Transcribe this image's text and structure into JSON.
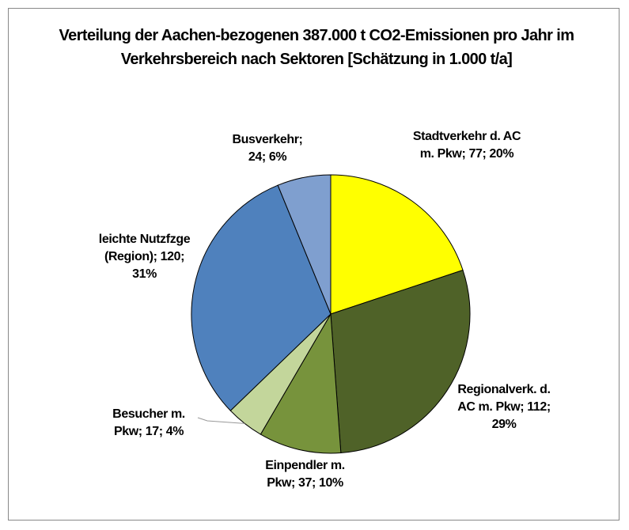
{
  "chart_data": {
    "type": "pie",
    "title": "Verteilung der Aachen-bezogenen 387.000 t CO2-Emissionen pro Jahr im Verkehrsbereich nach Sektoren [Schätzung in 1.000 t/a]",
    "categories": [
      "Stadtverkehr d. AC m. Pkw; 77; 20%",
      "Regionalverk. d. AC m. Pkw; 112; 29%",
      "Einpendler m. Pkw; 37; 10%",
      "Besucher m. Pkw; 17; 4%",
      "leichte Nutzfzge (Region); 120; 31%",
      "Busverkehr; 24; 6%"
    ],
    "values": [
      77,
      112,
      37,
      17,
      120,
      24
    ],
    "colors": [
      "#ffff00",
      "#4f6228",
      "#77933c",
      "#c3d69b",
      "#4f81bd",
      "#7f9fcf"
    ]
  }
}
